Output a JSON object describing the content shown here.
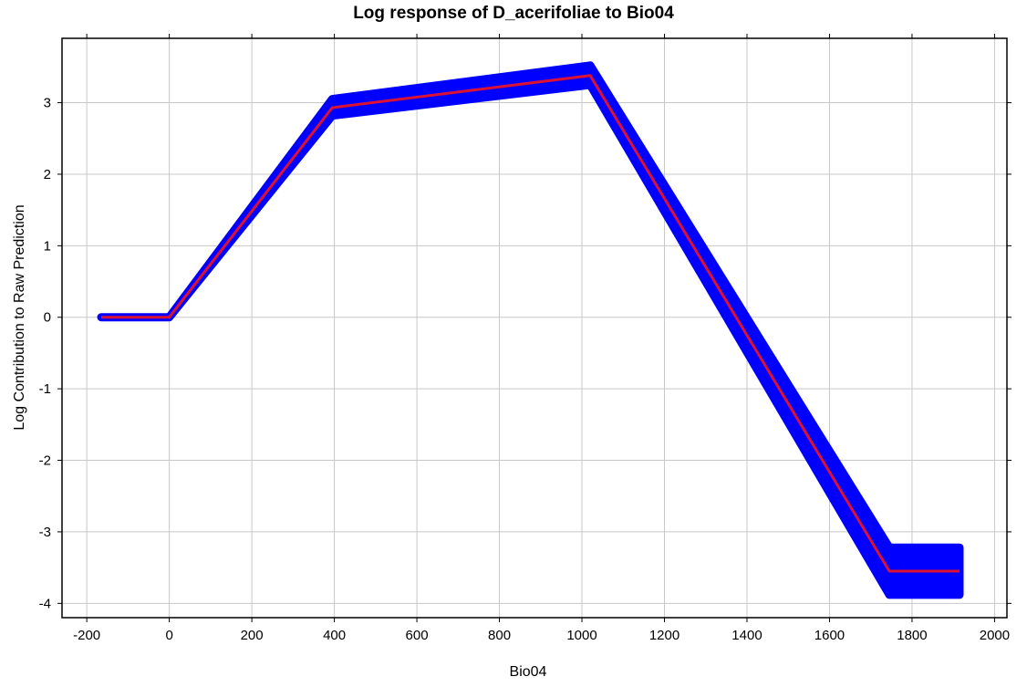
{
  "chart_data": {
    "type": "line",
    "title": "Log response of D_acerifoliae to Bio04",
    "xlabel": "Bio04",
    "ylabel": "Log Contribution to Raw Prediction",
    "xlim": [
      -260,
      2030
    ],
    "ylim": [
      -4.2,
      3.9
    ],
    "xticks": [
      -200,
      0,
      200,
      400,
      600,
      800,
      1000,
      1200,
      1400,
      1600,
      1800,
      2000
    ],
    "yticks": [
      -4,
      -3,
      -2,
      -1,
      0,
      1,
      2,
      3
    ],
    "grid": true,
    "series": [
      {
        "role": "mean",
        "color": "#dd1133",
        "x": [
          -165,
          0,
          395,
          1020,
          1745,
          1915
        ],
        "y": [
          0.0,
          0.0,
          2.93,
          3.38,
          -3.55,
          -3.55
        ]
      }
    ],
    "band": {
      "color": "#0000ff",
      "x": [
        -165,
        0,
        395,
        1020,
        1745,
        1915
      ],
      "upper": [
        0.0,
        0.0,
        3.05,
        3.52,
        -3.22,
        -3.22
      ],
      "lower": [
        0.0,
        0.0,
        2.82,
        3.25,
        -3.88,
        -3.88
      ]
    }
  }
}
